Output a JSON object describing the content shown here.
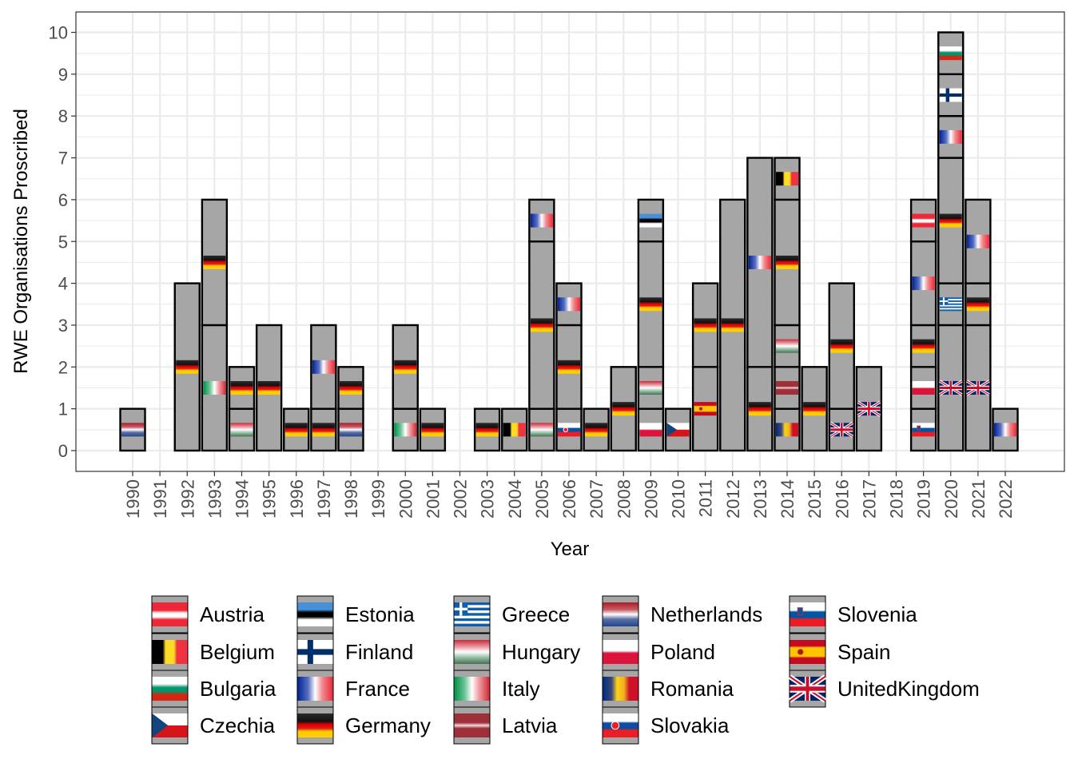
{
  "chart_data": {
    "type": "bar",
    "subtype": "stacked-unit-flags",
    "title": "",
    "xlabel": "Year",
    "ylabel": "RWE Organisations Proscribed",
    "ylim": [
      0,
      10
    ],
    "yticks": [
      0,
      1,
      2,
      3,
      4,
      5,
      6,
      7,
      8,
      9,
      10
    ],
    "years": [
      "1990",
      "1991",
      "1992",
      "1993",
      "1994",
      "1995",
      "1996",
      "1997",
      "1998",
      "1999",
      "2000",
      "2001",
      "2002",
      "2003",
      "2004",
      "2005",
      "2006",
      "2007",
      "2008",
      "2009",
      "2010",
      "2011",
      "2012",
      "2013",
      "2014",
      "2015",
      "2016",
      "2017",
      "2018",
      "2019",
      "2020",
      "2021",
      "2022"
    ],
    "grid": true,
    "legend_position": "bottom",
    "bars": [
      {
        "year": "1990",
        "total": 1,
        "segments": [
          {
            "country": "Netherlands",
            "count": 1
          }
        ]
      },
      {
        "year": "1991",
        "total": 0,
        "segments": []
      },
      {
        "year": "1992",
        "total": 4,
        "segments": [
          {
            "country": "Germany",
            "count": 4
          }
        ]
      },
      {
        "year": "1993",
        "total": 6,
        "segments": [
          {
            "country": "Italy",
            "count": 3
          },
          {
            "country": "Germany",
            "count": 3
          }
        ]
      },
      {
        "year": "1994",
        "total": 2,
        "segments": [
          {
            "country": "Hungary",
            "count": 1
          },
          {
            "country": "Germany",
            "count": 1
          }
        ]
      },
      {
        "year": "1995",
        "total": 3,
        "segments": [
          {
            "country": "Germany",
            "count": 3
          }
        ]
      },
      {
        "year": "1996",
        "total": 1,
        "segments": [
          {
            "country": "Germany",
            "count": 1
          }
        ]
      },
      {
        "year": "1997",
        "total": 3,
        "segments": [
          {
            "country": "Germany",
            "count": 1
          },
          {
            "country": "France",
            "count": 2
          }
        ]
      },
      {
        "year": "1998",
        "total": 2,
        "segments": [
          {
            "country": "Netherlands",
            "count": 1
          },
          {
            "country": "Germany",
            "count": 1
          }
        ]
      },
      {
        "year": "1999",
        "total": 0,
        "segments": []
      },
      {
        "year": "2000",
        "total": 3,
        "segments": [
          {
            "country": "Italy",
            "count": 1
          },
          {
            "country": "Germany",
            "count": 2
          }
        ]
      },
      {
        "year": "2001",
        "total": 1,
        "segments": [
          {
            "country": "Germany",
            "count": 1
          }
        ]
      },
      {
        "year": "2002",
        "total": 0,
        "segments": []
      },
      {
        "year": "2003",
        "total": 1,
        "segments": [
          {
            "country": "Germany",
            "count": 1
          }
        ]
      },
      {
        "year": "2004",
        "total": 1,
        "segments": [
          {
            "country": "Belgium",
            "count": 1
          }
        ]
      },
      {
        "year": "2005",
        "total": 6,
        "segments": [
          {
            "country": "Hungary",
            "count": 1
          },
          {
            "country": "Germany",
            "count": 4
          },
          {
            "country": "France",
            "count": 1
          }
        ]
      },
      {
        "year": "2006",
        "total": 4,
        "segments": [
          {
            "country": "Slovakia",
            "count": 1
          },
          {
            "country": "Germany",
            "count": 2
          },
          {
            "country": "France",
            "count": 1
          }
        ]
      },
      {
        "year": "2007",
        "total": 1,
        "segments": [
          {
            "country": "Germany",
            "count": 1
          }
        ]
      },
      {
        "year": "2008",
        "total": 2,
        "segments": [
          {
            "country": "Germany",
            "count": 2
          }
        ]
      },
      {
        "year": "2009",
        "total": 6,
        "segments": [
          {
            "country": "Poland",
            "count": 1
          },
          {
            "country": "Hungary",
            "count": 1
          },
          {
            "country": "Germany",
            "count": 3
          },
          {
            "country": "Estonia",
            "count": 1
          }
        ]
      },
      {
        "year": "2010",
        "total": 1,
        "segments": [
          {
            "country": "Czechia",
            "count": 1
          }
        ]
      },
      {
        "year": "2011",
        "total": 4,
        "segments": [
          {
            "country": "Spain",
            "count": 2
          },
          {
            "country": "Germany",
            "count": 2
          }
        ]
      },
      {
        "year": "2012",
        "total": 6,
        "segments": [
          {
            "country": "Germany",
            "count": 6
          }
        ]
      },
      {
        "year": "2013",
        "total": 7,
        "segments": [
          {
            "country": "Germany",
            "count": 2
          },
          {
            "country": "France",
            "count": 5
          }
        ]
      },
      {
        "year": "2014",
        "total": 7,
        "segments": [
          {
            "country": "Romania",
            "count": 1
          },
          {
            "country": "Latvia",
            "count": 1
          },
          {
            "country": "Hungary",
            "count": 1
          },
          {
            "country": "Germany",
            "count": 3
          },
          {
            "country": "Belgium",
            "count": 1
          }
        ]
      },
      {
        "year": "2015",
        "total": 2,
        "segments": [
          {
            "country": "Germany",
            "count": 2
          }
        ]
      },
      {
        "year": "2016",
        "total": 4,
        "segments": [
          {
            "country": "UnitedKingdom",
            "count": 1
          },
          {
            "country": "Germany",
            "count": 3
          }
        ]
      },
      {
        "year": "2017",
        "total": 2,
        "segments": [
          {
            "country": "UnitedKingdom",
            "count": 2
          }
        ]
      },
      {
        "year": "2018",
        "total": 0,
        "segments": []
      },
      {
        "year": "2019",
        "total": 6,
        "segments": [
          {
            "country": "Slovenia",
            "count": 1
          },
          {
            "country": "Poland",
            "count": 1
          },
          {
            "country": "Germany",
            "count": 1
          },
          {
            "country": "France",
            "count": 2
          },
          {
            "country": "Austria",
            "count": 1
          }
        ]
      },
      {
        "year": "2020",
        "total": 10,
        "segments": [
          {
            "country": "UnitedKingdom",
            "count": 3
          },
          {
            "country": "Greece",
            "count": 1
          },
          {
            "country": "Germany",
            "count": 3
          },
          {
            "country": "France",
            "count": 1
          },
          {
            "country": "Finland",
            "count": 1
          },
          {
            "country": "Bulgaria",
            "count": 1
          }
        ]
      },
      {
        "year": "2021",
        "total": 6,
        "segments": [
          {
            "country": "UnitedKingdom",
            "count": 3
          },
          {
            "country": "Germany",
            "count": 1
          },
          {
            "country": "France",
            "count": 2
          }
        ]
      },
      {
        "year": "2022",
        "total": 1,
        "segments": [
          {
            "country": "France",
            "count": 1
          }
        ]
      }
    ],
    "legend": [
      "Austria",
      "Belgium",
      "Bulgaria",
      "Czechia",
      "Estonia",
      "Finland",
      "France",
      "Germany",
      "Greece",
      "Hungary",
      "Italy",
      "Latvia",
      "Netherlands",
      "Poland",
      "Romania",
      "Slovakia",
      "Slovenia",
      "Spain",
      "UnitedKingdom"
    ]
  },
  "colors": {
    "bar_fill": "#a6a6a6",
    "bar_stroke": "#000000",
    "grid": "#ebebeb",
    "panel_border": "#333333"
  }
}
